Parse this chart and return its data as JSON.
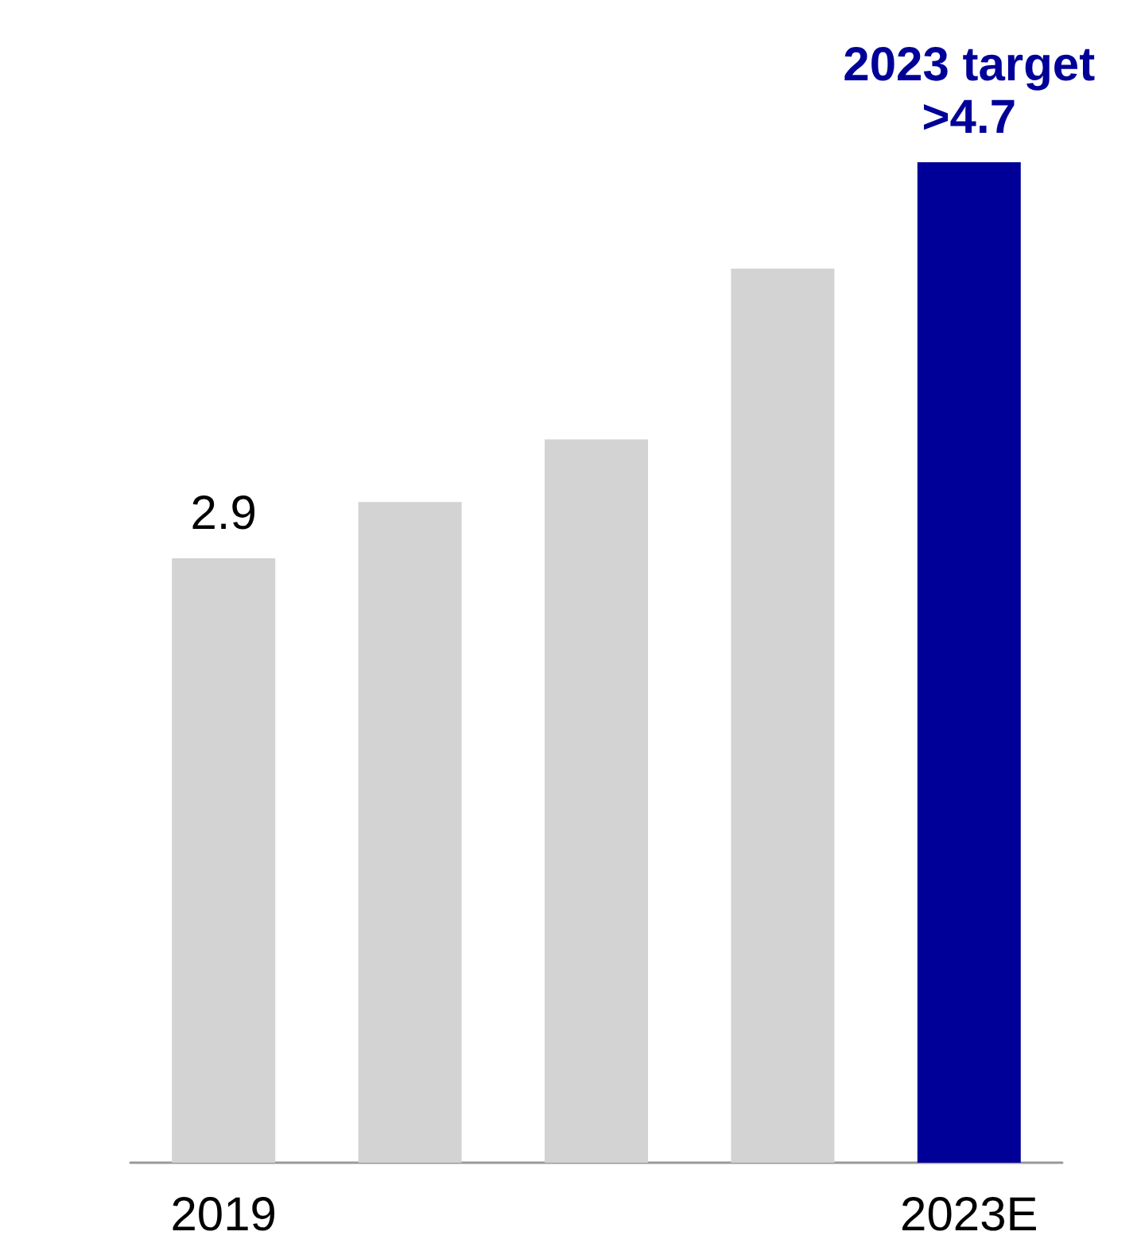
{
  "chart_data": {
    "type": "bar",
    "categories": [
      "2019",
      null,
      null,
      null,
      "2023E"
    ],
    "values": [
      2.9,
      3.17,
      3.47,
      4.29,
      4.8
    ],
    "colors": [
      "#d3d3d3",
      "#d3d3d3",
      "#d3d3d3",
      "#d3d3d3",
      "#000099"
    ],
    "value_labels": [
      "2.9",
      null,
      null,
      null,
      ">4.7"
    ],
    "annotations": [
      {
        "text": "2023 target",
        "x": "2023E",
        "y": 4.8
      }
    ],
    "ylim": [
      0,
      4.8
    ]
  }
}
